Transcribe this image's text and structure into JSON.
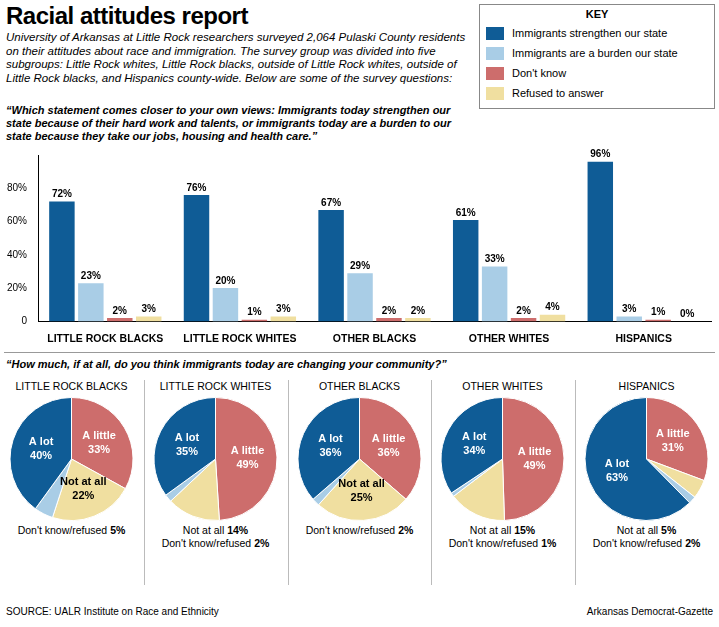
{
  "header": {
    "title": "Racial attitudes report",
    "subtitle": "University of Arkansas at Little Rock researchers surveyed 2,064 Pulaski County residents on their attitudes about race and immigration. The survey group was divided into five subgroups: Little Rock whites, Little Rock blacks, outside of Little Rock whites, outside of Little Rock blacks, and Hispanics county-wide. Below are some of the survey questions:"
  },
  "chart_data": [
    {
      "type": "bar",
      "title": "“Which statement comes closer to your own views: Immigrants today strengthen our state because of their hard work and talents, or immigrants today are a burden to our state because they take our jobs, housing and health care.”",
      "categories": [
        "LITTLE ROCK BLACKS",
        "LITTLE ROCK WHITES",
        "OTHER BLACKS",
        "OTHER WHITES",
        "HISPANICS"
      ],
      "series": [
        {
          "name": "Immigrants strengthen our state",
          "color": "#0f5c96",
          "values": [
            72,
            76,
            67,
            61,
            96
          ],
          "value_labels": [
            "72%",
            "76%",
            "67%",
            "61%",
            "96%"
          ]
        },
        {
          "name": "Immigrants are a burden our state",
          "color": "#a9cde6",
          "values": [
            23,
            20,
            29,
            33,
            3
          ],
          "value_labels": [
            "23%",
            "20%",
            "29%",
            "33%",
            "3%"
          ]
        },
        {
          "name": "Don't know",
          "color": "#cd6d6c",
          "values": [
            2,
            1,
            2,
            2,
            1
          ],
          "value_labels": [
            "2%",
            "1%",
            "2%",
            "2%",
            "1%"
          ]
        },
        {
          "name": "Refused to answer",
          "color": "#f0dfa0",
          "values": [
            3,
            3,
            2,
            4,
            0
          ],
          "value_labels": [
            "3%",
            "3%",
            "2%",
            "4%",
            "0%"
          ]
        }
      ],
      "ylim": [
        0,
        100
      ],
      "yticks": [
        0,
        {
          "value": 20,
          "label": "20%"
        },
        {
          "value": 40,
          "label": "40%"
        },
        {
          "value": 60,
          "label": "60%"
        },
        {
          "value": 80,
          "label": "80%"
        }
      ],
      "grid": false,
      "data_labels": true,
      "legend": "top right",
      "legend_title": "KEY"
    },
    {
      "type": "pie",
      "title": "LITTLE ROCK BLACKS",
      "categories": [
        "A little",
        "Not at all",
        "Don't know/refused",
        "A lot"
      ],
      "values": [
        33,
        22,
        5,
        40
      ],
      "value_labels": [
        "33%",
        "22%",
        "5%",
        "40%"
      ],
      "colors": [
        "#cd6d6c",
        "#f0dfa0",
        "#a9cde6",
        "#0f5c96"
      ],
      "data_labels": true
    },
    {
      "type": "pie",
      "title": "LITTLE ROCK WHITES",
      "categories": [
        "A little",
        "Not at all",
        "Don't know/refused",
        "A lot"
      ],
      "values": [
        49,
        14,
        2,
        35
      ],
      "value_labels": [
        "49%",
        "14%",
        "2%",
        "35%"
      ],
      "colors": [
        "#cd6d6c",
        "#f0dfa0",
        "#a9cde6",
        "#0f5c96"
      ],
      "data_labels": true
    },
    {
      "type": "pie",
      "title": "OTHER BLACKS",
      "categories": [
        "A little",
        "Not at all",
        "Don't know/refused",
        "A lot"
      ],
      "values": [
        36,
        25,
        2,
        36
      ],
      "value_labels": [
        "36%",
        "25%",
        "2%",
        "36%"
      ],
      "colors": [
        "#cd6d6c",
        "#f0dfa0",
        "#a9cde6",
        "#0f5c96"
      ],
      "data_labels": true
    },
    {
      "type": "pie",
      "title": "OTHER WHITES",
      "categories": [
        "A little",
        "Not at all",
        "Don't know/refused",
        "A lot"
      ],
      "values": [
        49,
        15,
        1,
        34
      ],
      "value_labels": [
        "49%",
        "15%",
        "1%",
        "34%"
      ],
      "colors": [
        "#cd6d6c",
        "#f0dfa0",
        "#a9cde6",
        "#0f5c96"
      ],
      "data_labels": true
    },
    {
      "type": "pie",
      "title": "HISPANICS",
      "categories": [
        "A little",
        "Not at all",
        "Don't know/refused",
        "A lot"
      ],
      "values": [
        31,
        5,
        2,
        63
      ],
      "value_labels": [
        "31%",
        "5%",
        "2%",
        "63%"
      ],
      "colors": [
        "#cd6d6c",
        "#f0dfa0",
        "#a9cde6",
        "#0f5c96"
      ],
      "data_labels": true
    }
  ],
  "pie_question": "“How much, if at all, do you think immigrants today are changing your community?”",
  "footer": {
    "source": "SOURCE: UALR Institute on Race and Ethnicity",
    "credit": "Arkansas Democrat-Gazette"
  }
}
